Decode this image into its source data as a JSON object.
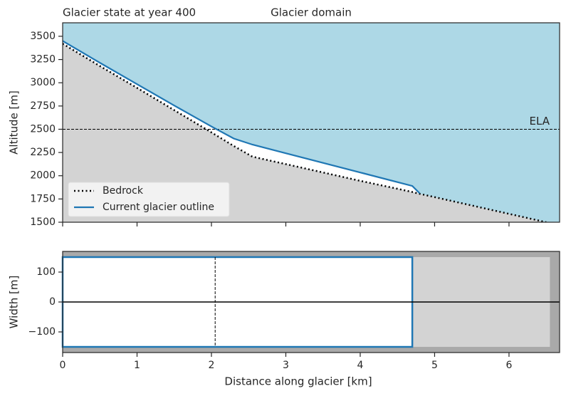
{
  "chart_data": [
    {
      "type": "line",
      "title": "Glacier state at year 400",
      "subtitle": "Glacier domain",
      "ylabel": "Altitude [m]",
      "x": [
        0,
        0.5,
        1,
        1.5,
        2,
        2.3,
        2.55,
        3,
        3.5,
        4,
        4.5,
        4.7,
        4.8,
        5,
        5.5,
        6,
        6.5
      ],
      "series": [
        {
          "name": "Bedrock",
          "color": "#000000",
          "style": "dotted",
          "values": [
            3420,
            3180,
            2945,
            2705,
            2466,
            2320,
            2205,
            2125,
            2035,
            1945,
            1860,
            1825,
            1805,
            1770,
            1680,
            1590,
            1500
          ]
        },
        {
          "name": "Current glacier outline",
          "color": "#1f77b4",
          "style": "solid",
          "values": [
            3450,
            3215,
            2985,
            2755,
            2530,
            2400,
            2335,
            2242,
            2138,
            2035,
            1931,
            1890,
            1810,
            null,
            null,
            null,
            null
          ]
        }
      ],
      "annotations": [
        {
          "text": "ELA",
          "y": 2500
        }
      ],
      "background": "#add8e6",
      "ground": "#d3d3d3",
      "xlim": [
        0,
        6.68
      ],
      "xticks": [
        0,
        1,
        2,
        3,
        4,
        5,
        6
      ],
      "ylim": [
        1500,
        3645
      ],
      "yticks": [
        1500,
        1750,
        2000,
        2250,
        2500,
        2750,
        3000,
        3250,
        3500
      ],
      "legend": "lower left"
    },
    {
      "type": "rect",
      "xlabel": "Distance along glacier [km]",
      "ylabel": "Width [m]",
      "background": "#a9a9a9",
      "domain": {
        "x": [
          0,
          6.55
        ],
        "y": [
          -150,
          150
        ],
        "color": "#d3d3d3"
      },
      "glacier": {
        "x": [
          0,
          4.7
        ],
        "y": [
          -150,
          150
        ],
        "color": "#1f77b4"
      },
      "ela_x": 2.05,
      "xlim": [
        0,
        6.68
      ],
      "xticks": [
        0,
        1,
        2,
        3,
        4,
        5,
        6
      ],
      "ylim": [
        -169,
        169
      ],
      "yticks": [
        {
          "value": -100,
          "label": "−100"
        },
        0,
        100
      ]
    }
  ]
}
